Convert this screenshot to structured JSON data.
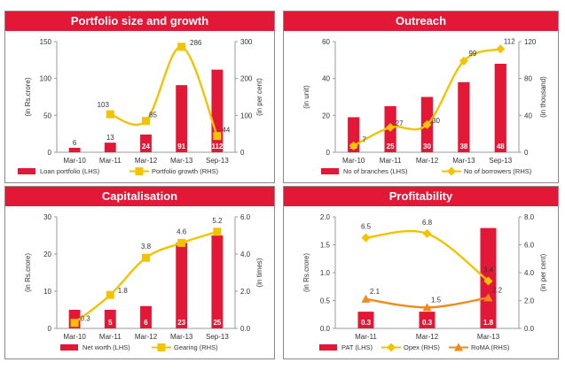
{
  "colors": {
    "header": "#e31837",
    "bar": "#e31837",
    "line": "#f2c300",
    "line2": "#f08a1c",
    "border": "#8a8a8a"
  },
  "chart_data": [
    {
      "type": "bar",
      "title": "Portfolio size and growth",
      "categories": [
        "Mar-10",
        "Mar-11",
        "Mar-12",
        "Mar-13",
        "Sep-13"
      ],
      "ylabel": "(in Rs.crore)",
      "y2label": "(in per cent)",
      "ylim": [
        0,
        150
      ],
      "yticks": [
        "0",
        "50",
        "100",
        "150"
      ],
      "y2lim": [
        0,
        300
      ],
      "y2ticks": [
        "0",
        "100",
        "200",
        "300"
      ],
      "series": [
        {
          "name": "Loan portfolio (LHS)",
          "kind": "bar",
          "axis": "left",
          "values": [
            6,
            13,
            24,
            91,
            112
          ],
          "labels": [
            "6",
            "13",
            "24",
            "91",
            "112"
          ]
        },
        {
          "name": "Portfolio growth (RHS)",
          "kind": "line",
          "axis": "right",
          "marker": "square",
          "color": "#f2c300",
          "values": [
            null,
            103,
            85,
            286,
            44
          ],
          "labels": [
            "",
            "103",
            "85",
            "286",
            "44"
          ]
        }
      ]
    },
    {
      "type": "bar",
      "title": "Outreach",
      "categories": [
        "Mar-10",
        "Mar-11",
        "Mar-12",
        "Mar-13",
        "Sep-13"
      ],
      "ylabel": "(in unit)",
      "y2label": "(in thousand)",
      "ylim": [
        0,
        60
      ],
      "yticks": [
        "0",
        "20",
        "40",
        "60"
      ],
      "y2lim": [
        0,
        120
      ],
      "y2ticks": [
        "0",
        "40",
        "80",
        "120"
      ],
      "series": [
        {
          "name": "No of branches (LHS)",
          "kind": "bar",
          "axis": "left",
          "values": [
            19,
            25,
            30,
            38,
            48
          ],
          "labels": [
            "19",
            "25",
            "30",
            "38",
            "48"
          ]
        },
        {
          "name": "No of borrowers (RHS)",
          "kind": "line",
          "axis": "right",
          "marker": "diamond",
          "color": "#f2c300",
          "values": [
            7,
            27,
            30,
            99,
            112
          ],
          "labels": [
            "7",
            "27",
            "30",
            "99",
            "112"
          ]
        }
      ]
    },
    {
      "type": "bar",
      "title": "Capitalisation",
      "categories": [
        "Mar-10",
        "Mar-11",
        "Mar-12",
        "Mar-13",
        "Sep-13"
      ],
      "ylabel": "(in Rs.crore)",
      "y2label": "(in times)",
      "ylim": [
        0,
        30
      ],
      "yticks": [
        "0",
        "10",
        "20",
        "30"
      ],
      "y2lim": [
        0,
        6
      ],
      "y2ticks": [
        "0.0",
        "2.0",
        "4.0",
        "6.0"
      ],
      "series": [
        {
          "name": "Net worth (LHS)",
          "kind": "bar",
          "axis": "left",
          "values": [
            5,
            5,
            6,
            23,
            25
          ],
          "labels": [
            "5",
            "5",
            "6",
            "23",
            "25"
          ]
        },
        {
          "name": "Gearing (RHS)",
          "kind": "line",
          "axis": "right",
          "marker": "square",
          "color": "#f2c300",
          "values": [
            0.3,
            1.8,
            3.8,
            4.6,
            5.2
          ],
          "labels": [
            "0.3",
            "1.8",
            "3.8",
            "4.6",
            "5.2"
          ]
        }
      ]
    },
    {
      "type": "bar",
      "title": "Profitability",
      "categories": [
        "Mar-11",
        "Mar-12",
        "Mar-13"
      ],
      "ylabel": "(in Rs.crore)",
      "y2label": "(in per cent)",
      "ylim": [
        0,
        2
      ],
      "yticks": [
        "0.0",
        "0.5",
        "1.0",
        "1.5",
        "2.0"
      ],
      "y2lim": [
        0,
        8
      ],
      "y2ticks": [
        "0.0",
        "2.0",
        "4.0",
        "6.0",
        "8.0"
      ],
      "series": [
        {
          "name": "PAT (LHS)",
          "kind": "bar",
          "axis": "left",
          "values": [
            0.3,
            0.3,
            1.8
          ],
          "labels": [
            "0.3",
            "0.3",
            "1.8"
          ]
        },
        {
          "name": "Opex (RHS)",
          "kind": "line",
          "axis": "right",
          "marker": "diamond",
          "color": "#f2c300",
          "values": [
            6.5,
            6.8,
            3.4
          ],
          "labels": [
            "6.5",
            "6.8",
            "3.4"
          ]
        },
        {
          "name": "RoMA (RHS)",
          "kind": "line",
          "axis": "right",
          "marker": "triangle",
          "color": "#f08a1c",
          "values": [
            2.1,
            1.5,
            2.2
          ],
          "labels": [
            "2.1",
            "1.5",
            "2.2"
          ]
        }
      ]
    }
  ]
}
